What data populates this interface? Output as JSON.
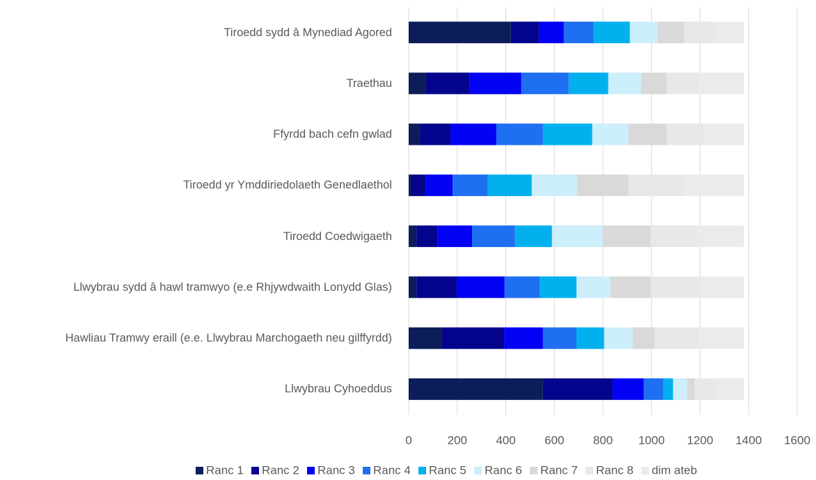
{
  "chart_data": {
    "type": "stacked-bar-horizontal",
    "categories": [
      "Tiroedd sydd â Mynediad Agored",
      "Traethau",
      "Ffyrdd bach cefn gwlad",
      "Tiroedd yr Ymddiriedolaeth Genedlaethol",
      "Tiroedd Coedwigaeth",
      "Llwybrau sydd â hawl tramwyo (e.e Rhjywdwaith Lonydd Glas)",
      "Hawliau Tramwy eraill (e.e. Llwybrau Marchogaeth neu gilffyrdd)",
      "Llwybrau Cyhoeddus"
    ],
    "series": [
      {
        "name": "Ranc 1",
        "color": "#0c1e5a",
        "values": [
          421,
          69,
          46,
          10,
          32,
          32,
          135,
          553
        ]
      },
      {
        "name": "Ranc 2",
        "color": "#04058c",
        "values": [
          115,
          183,
          126,
          59,
          88,
          166,
          258,
          287
        ]
      },
      {
        "name": "Ranc 3",
        "color": "#0202f5",
        "values": [
          103,
          212,
          189,
          112,
          141,
          197,
          160,
          128
        ]
      },
      {
        "name": "Ranc 4",
        "color": "#1f6ff2",
        "values": [
          123,
          195,
          192,
          143,
          177,
          144,
          138,
          81
        ]
      },
      {
        "name": "Ranc 5",
        "color": "#03b0ee",
        "values": [
          149,
          163,
          203,
          183,
          152,
          152,
          114,
          40
        ]
      },
      {
        "name": "Ranc 6",
        "color": "#cdeefb",
        "values": [
          112,
          135,
          149,
          186,
          209,
          140,
          118,
          57
        ]
      },
      {
        "name": "Ranc 7",
        "color": "#d9d9d9",
        "values": [
          112,
          106,
          158,
          212,
          198,
          166,
          91,
          32
        ]
      },
      {
        "name": "Ranc 8",
        "color": "#e8e8e8",
        "values": [
          130,
          130,
          150,
          230,
          190,
          200,
          180,
          100
        ]
      },
      {
        "name": "dim ateb",
        "color": "#ebebeb",
        "values": [
          116,
          188,
          168,
          246,
          194,
          184,
          187,
          103
        ]
      }
    ],
    "xlim": [
      0,
      1600
    ],
    "xticks": [
      0,
      200,
      400,
      600,
      800,
      1000,
      1200,
      1400,
      1600
    ],
    "grid": true,
    "legend": "bottom"
  }
}
